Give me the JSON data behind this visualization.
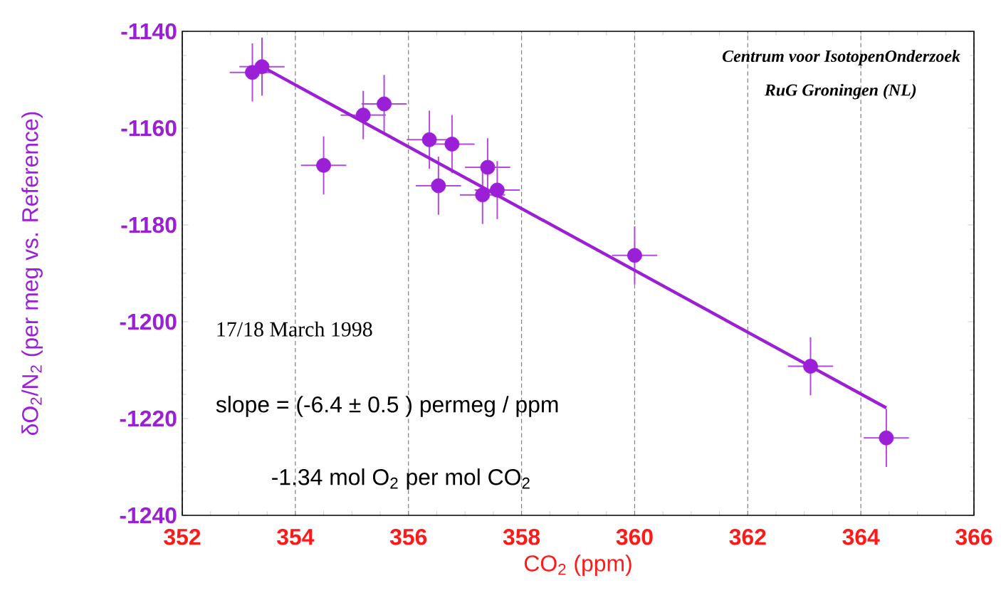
{
  "chart_data": {
    "type": "scatter",
    "xlabel": "CO$_{2}$ (ppm)",
    "ylabel": "δO$_{2}$/N$_{2}$ (per meg vs. Reference)",
    "annotations": [
      "Centrum voor IsotopenOnderzoek",
      "RuG Groningen (NL)",
      "17/18 March 1998",
      "slope = (-6.4 ± 0.5 ) permeg / ppm",
      "-1.34 mol O$_{2}$ per mol CO$_{2}$"
    ],
    "xlim": [
      352,
      366
    ],
    "xticks": [
      352,
      354,
      356,
      358,
      360,
      362,
      364,
      366
    ],
    "ylim": [
      -1240,
      -1140
    ],
    "yticks": [
      -1240,
      -1220,
      -1200,
      -1180,
      -1160,
      -1140
    ],
    "grid": "x",
    "series": [
      {
        "marker": "circle",
        "color": "#9b1fd6",
        "x": [
          353.24,
          353.41,
          354.5,
          355.2,
          355.57,
          356.37,
          356.53,
          356.77,
          357.31,
          357.4,
          357.57,
          360.0,
          363.11,
          364.45
        ],
        "values": [
          -1148.5,
          -1147.3,
          -1167.7,
          -1157.3,
          -1155.0,
          -1162.4,
          -1171.9,
          -1163.3,
          -1173.8,
          -1168.1,
          -1172.8,
          -1186.3,
          -1209.2,
          -1224.0
        ],
        "errors": [
          6,
          6,
          6,
          5,
          6,
          6,
          6,
          6,
          6,
          6,
          6,
          6,
          6,
          6
        ],
        "xerrors": [
          0.4,
          0.4,
          0.4,
          0.4,
          0.4,
          0.4,
          0.4,
          0.4,
          0.4,
          0.4,
          0.4,
          0.4,
          0.4,
          0.4
        ]
      },
      {
        "type": "line",
        "marker": "none",
        "color": "#9b1fd6",
        "x": [
          353.41,
          364.45
        ],
        "values": [
          -1147.3,
          -1217.8
        ]
      }
    ]
  }
}
